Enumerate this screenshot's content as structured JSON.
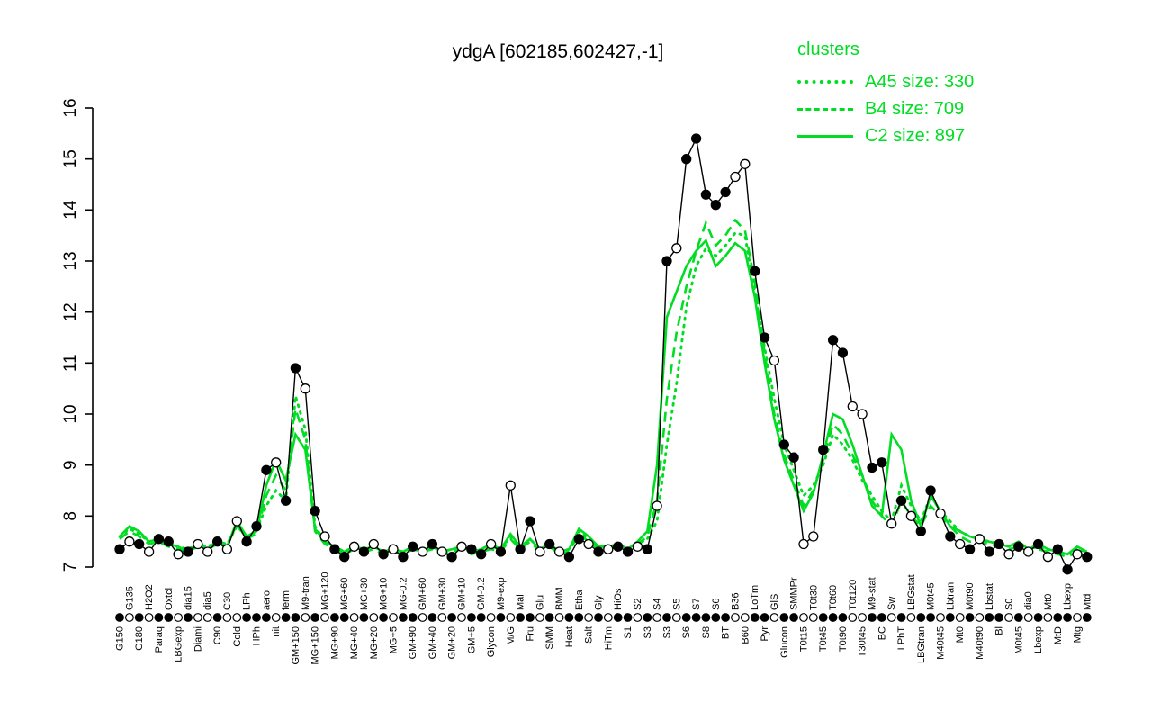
{
  "title": "ydgA [602185,602427,-1]",
  "legend": {
    "title": "clusters",
    "entries": [
      {
        "label": "A45 size: 330",
        "style": "dotted"
      },
      {
        "label": "B4 size: 709",
        "style": "dashed"
      },
      {
        "label": "C2 size: 897",
        "style": "solid"
      }
    ]
  },
  "colors": {
    "cluster": "#00dd22",
    "gene": "#000000",
    "background": "#ffffff"
  },
  "axis": {
    "y_min": 7,
    "y_max": 16,
    "y_ticks": [
      7,
      8,
      9,
      10,
      11,
      12,
      13,
      14,
      15,
      16
    ]
  },
  "chart_data": {
    "type": "line",
    "title": "ydgA [602185,602427,-1]",
    "xlabel": "",
    "ylabel": "",
    "ylim": [
      7,
      16
    ],
    "grid": false,
    "legend_position": "top-right",
    "categories": [
      "G150",
      "G135",
      "G180",
      "H2O2",
      "Paraq",
      "Oxtcl",
      "LBGexp",
      "dia15",
      "Diami",
      "dia5",
      "C90",
      "C30",
      "Cold",
      "LPh",
      "HPh",
      "aero",
      "nit",
      "ferm",
      "GM+150",
      "M9-tran",
      "MG+150",
      "MG+120",
      "MG+90",
      "MG+60",
      "MG+40",
      "MG+30",
      "MG+20",
      "MG+10",
      "MG+5",
      "MG-0.2",
      "GM+90",
      "GM+60",
      "GM+40",
      "GM+30",
      "GM+20",
      "GM+10",
      "GM+5",
      "GM-0.2",
      "Glycon",
      "M9-exp",
      "M/G",
      "Mal",
      "Fru",
      "Glu",
      "SMM",
      "BMM",
      "Heat",
      "Etha",
      "Salt",
      "Gly",
      "HiTm",
      "HiOs",
      "S1",
      "S2",
      "S3",
      "S4",
      "S3",
      "S5",
      "S6",
      "S7",
      "S8",
      "S6",
      "BT",
      "B36",
      "B60",
      "LoTm",
      "Pyr",
      "GlS",
      "Glucon",
      "SMMPr",
      "T0t15",
      "T0t30",
      "T0t45",
      "T0t60",
      "T0t90",
      "T0t120",
      "T30t45",
      "M9-stat",
      "BC",
      "Sw",
      "LPhT",
      "LBGstat",
      "LBGtran",
      "M0t45",
      "M40t45",
      "Lbtran",
      "Mt0",
      "M0t90",
      "M40t90",
      "Lbstat",
      "Bl",
      "S0",
      "M0t45",
      "dia0",
      "Lbexp",
      "Mt0",
      "MtD",
      "Lbexp",
      "Mtg",
      "Mtd"
    ],
    "marker_filled": [
      1,
      0,
      1,
      0,
      1,
      1,
      0,
      1,
      0,
      0,
      1,
      0,
      0,
      1,
      1,
      1,
      0,
      1,
      1,
      0,
      1,
      0,
      1,
      1,
      0,
      1,
      0,
      1,
      0,
      1,
      1,
      0,
      1,
      0,
      1,
      0,
      1,
      1,
      0,
      1,
      0,
      1,
      1,
      0,
      1,
      0,
      1,
      1,
      0,
      1,
      0,
      1,
      1,
      0,
      1,
      0,
      1,
      0,
      1,
      1,
      1,
      1,
      1,
      0,
      0,
      1,
      1,
      0,
      1,
      1,
      0,
      0,
      1,
      1,
      1,
      0,
      0,
      1,
      1,
      0,
      1,
      0,
      1,
      1,
      0,
      1,
      0,
      1,
      0,
      1,
      1,
      0,
      1,
      0,
      1,
      0,
      1,
      1,
      0,
      1
    ],
    "series": [
      {
        "name": "ydgA",
        "cluster": "ydgA",
        "style": "markers",
        "color": "#000000",
        "values": [
          7.35,
          7.5,
          7.45,
          7.3,
          7.55,
          7.5,
          7.25,
          7.3,
          7.45,
          7.3,
          7.5,
          7.35,
          7.9,
          7.5,
          7.8,
          8.9,
          9.05,
          8.3,
          10.9,
          10.5,
          8.1,
          7.6,
          7.35,
          7.2,
          7.4,
          7.3,
          7.45,
          7.25,
          7.35,
          7.2,
          7.4,
          7.3,
          7.45,
          7.3,
          7.2,
          7.4,
          7.35,
          7.25,
          7.45,
          7.3,
          8.6,
          7.35,
          7.9,
          7.3,
          7.45,
          7.3,
          7.2,
          7.55,
          7.45,
          7.3,
          7.35,
          7.4,
          7.3,
          7.4,
          7.35,
          8.2,
          13.0,
          13.25,
          15.0,
          15.4,
          14.3,
          14.1,
          14.35,
          14.65,
          14.9,
          12.8,
          11.5,
          11.05,
          9.4,
          9.15,
          7.45,
          7.6,
          9.3,
          11.45,
          11.2,
          10.15,
          10.0,
          8.95,
          9.05,
          7.85,
          8.3,
          8.0,
          7.7,
          8.5,
          8.05,
          7.6,
          7.45,
          7.35,
          7.55,
          7.3,
          7.45,
          7.25,
          7.4,
          7.3,
          7.45,
          7.2,
          7.35,
          6.95,
          7.25,
          7.2
        ]
      },
      {
        "name": "A45 size: 330",
        "cluster": "A45",
        "style": "dotted",
        "color": "#00dd22",
        "values": [
          7.6,
          7.75,
          7.65,
          7.5,
          7.55,
          7.45,
          7.4,
          7.35,
          7.45,
          7.4,
          7.5,
          7.45,
          7.8,
          7.6,
          7.7,
          8.2,
          8.5,
          8.3,
          10.35,
          9.7,
          7.8,
          7.5,
          7.4,
          7.3,
          7.4,
          7.35,
          7.4,
          7.3,
          7.35,
          7.3,
          7.4,
          7.35,
          7.4,
          7.3,
          7.35,
          7.4,
          7.3,
          7.35,
          7.4,
          7.35,
          7.6,
          7.4,
          7.55,
          7.35,
          7.45,
          7.3,
          7.35,
          7.7,
          7.55,
          7.4,
          7.4,
          7.45,
          7.35,
          7.45,
          7.55,
          7.9,
          9.4,
          10.6,
          12.1,
          12.9,
          13.25,
          13.1,
          13.3,
          13.55,
          13.5,
          12.4,
          11.3,
          10.3,
          9.4,
          8.9,
          8.4,
          8.6,
          9.0,
          9.6,
          9.4,
          9.1,
          8.7,
          8.4,
          8.1,
          7.9,
          8.6,
          8.2,
          7.9,
          8.4,
          8.1,
          7.9,
          7.7,
          7.6,
          7.55,
          7.5,
          7.45,
          7.4,
          7.45,
          7.35,
          7.4,
          7.35,
          7.3,
          7.25,
          7.35,
          7.3
        ]
      },
      {
        "name": "B4 size: 709",
        "cluster": "B4",
        "style": "dashed",
        "color": "#00dd22",
        "values": [
          7.55,
          7.7,
          7.6,
          7.45,
          7.5,
          7.4,
          7.35,
          7.3,
          7.4,
          7.35,
          7.45,
          7.4,
          7.85,
          7.55,
          7.65,
          8.4,
          8.8,
          8.5,
          10.1,
          9.5,
          7.7,
          7.45,
          7.35,
          7.25,
          7.35,
          7.3,
          7.35,
          7.25,
          7.3,
          7.25,
          7.35,
          7.3,
          7.35,
          7.25,
          7.3,
          7.35,
          7.25,
          7.3,
          7.35,
          7.3,
          7.55,
          7.35,
          7.5,
          7.3,
          7.4,
          7.25,
          7.3,
          7.65,
          7.5,
          7.35,
          7.35,
          7.4,
          7.3,
          7.45,
          7.6,
          8.3,
          10.3,
          11.6,
          12.5,
          13.2,
          13.75,
          13.3,
          13.5,
          13.8,
          13.6,
          12.6,
          11.2,
          10.0,
          9.2,
          8.7,
          8.2,
          8.5,
          9.1,
          9.8,
          9.6,
          9.2,
          8.8,
          8.3,
          8.0,
          7.8,
          8.3,
          8.0,
          7.8,
          8.2,
          8.0,
          7.8,
          7.6,
          7.5,
          7.5,
          7.45,
          7.4,
          7.35,
          7.4,
          7.3,
          7.35,
          7.3,
          7.25,
          7.2,
          7.3,
          7.25
        ]
      },
      {
        "name": "C2 size: 897",
        "cluster": "C2",
        "style": "solid",
        "color": "#00dd22",
        "values": [
          7.6,
          7.8,
          7.7,
          7.5,
          7.55,
          7.45,
          7.4,
          7.3,
          7.45,
          7.35,
          7.5,
          7.4,
          7.9,
          7.6,
          7.7,
          8.6,
          9.1,
          8.7,
          9.6,
          9.3,
          7.75,
          7.5,
          7.4,
          7.3,
          7.4,
          7.35,
          7.4,
          7.3,
          7.35,
          7.3,
          7.4,
          7.3,
          7.4,
          7.3,
          7.35,
          7.4,
          7.3,
          7.35,
          7.45,
          7.35,
          7.65,
          7.4,
          7.55,
          7.35,
          7.45,
          7.3,
          7.35,
          7.75,
          7.6,
          7.4,
          7.4,
          7.45,
          7.35,
          7.5,
          7.7,
          9.0,
          11.9,
          12.4,
          12.9,
          13.2,
          13.4,
          12.9,
          13.1,
          13.35,
          13.2,
          12.3,
          11.0,
          9.9,
          9.1,
          8.6,
          8.1,
          8.45,
          9.2,
          10.0,
          9.9,
          9.4,
          8.8,
          8.2,
          8.0,
          9.6,
          9.3,
          8.3,
          7.8,
          8.4,
          8.1,
          7.8,
          7.7,
          7.6,
          7.55,
          7.5,
          7.45,
          7.4,
          7.5,
          7.35,
          7.45,
          7.35,
          7.3,
          7.25,
          7.4,
          7.3
        ]
      }
    ]
  }
}
